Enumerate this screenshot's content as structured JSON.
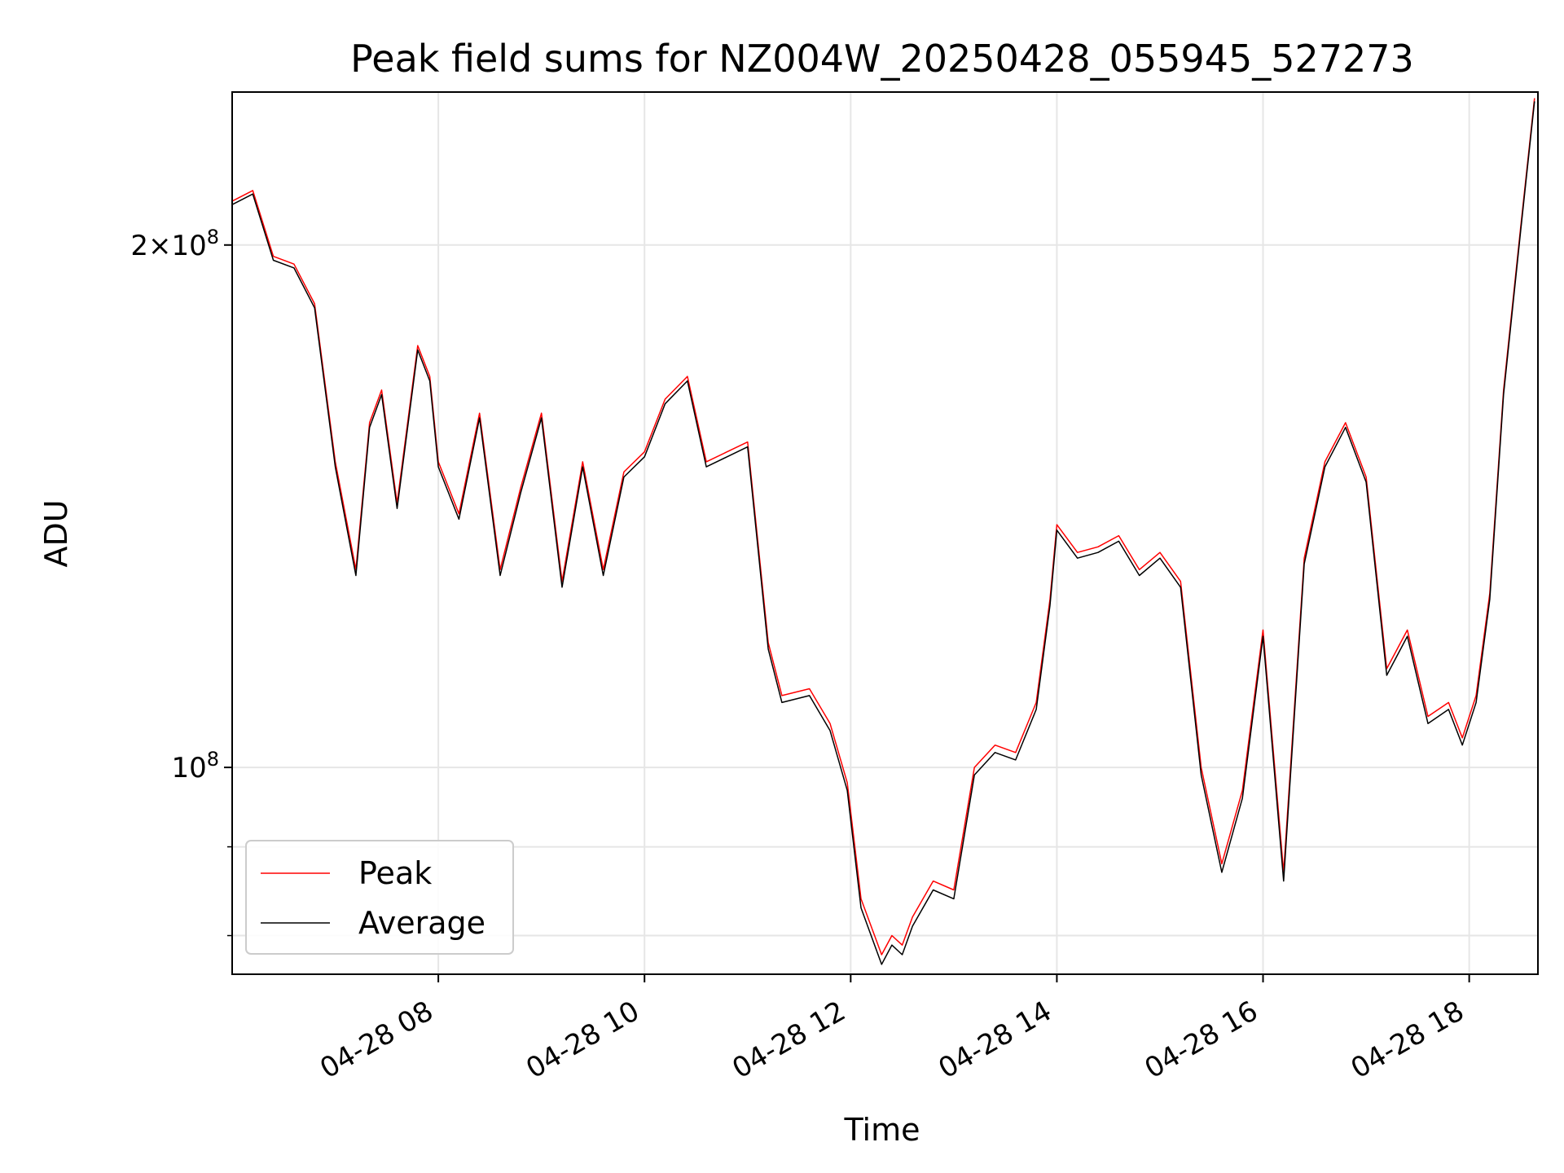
{
  "chart_data": {
    "type": "line",
    "title": "Peak field sums for NZ004W_20250428_055945_527273",
    "xlabel": "Time",
    "ylabel": "ADU",
    "y_scale": "log",
    "grid": true,
    "legend_position": "lower-left",
    "x_range": [
      "2025-04-28T06:00",
      "2025-04-28T18:40"
    ],
    "ylim": [
      76000000,
      245000000
    ],
    "x_ticks": [
      {
        "t": "2025-04-28T08:00",
        "label": "04-28 08"
      },
      {
        "t": "2025-04-28T10:00",
        "label": "04-28 10"
      },
      {
        "t": "2025-04-28T12:00",
        "label": "04-28 12"
      },
      {
        "t": "2025-04-28T14:00",
        "label": "04-28 14"
      },
      {
        "t": "2025-04-28T16:00",
        "label": "04-28 16"
      },
      {
        "t": "2025-04-28T18:00",
        "label": "04-28 18"
      }
    ],
    "y_major_ticks": [
      {
        "value": 100000000,
        "mantissa": "",
        "exp": "8"
      },
      {
        "value": 200000000,
        "mantissa": "2",
        "exp": "8"
      }
    ],
    "y_minor_ticks": [
      80000000,
      90000000
    ],
    "series": [
      {
        "name": "Peak",
        "color": "#ff0000",
        "x": [
          "2025-04-28T06:00",
          "2025-04-28T06:12",
          "2025-04-28T06:24",
          "2025-04-28T06:36",
          "2025-04-28T06:48",
          "2025-04-28T07:00",
          "2025-04-28T07:12",
          "2025-04-28T07:20",
          "2025-04-28T07:27",
          "2025-04-28T07:36",
          "2025-04-28T07:48",
          "2025-04-28T07:55",
          "2025-04-28T08:00",
          "2025-04-28T08:12",
          "2025-04-28T08:24",
          "2025-04-28T08:36",
          "2025-04-28T08:48",
          "2025-04-28T09:00",
          "2025-04-28T09:12",
          "2025-04-28T09:24",
          "2025-04-28T09:36",
          "2025-04-28T09:48",
          "2025-04-28T10:00",
          "2025-04-28T10:12",
          "2025-04-28T10:25",
          "2025-04-28T10:36",
          "2025-04-28T10:48",
          "2025-04-28T11:00",
          "2025-04-28T11:12",
          "2025-04-28T11:20",
          "2025-04-28T11:36",
          "2025-04-28T11:48",
          "2025-04-28T11:58",
          "2025-04-28T12:06",
          "2025-04-28T12:18",
          "2025-04-28T12:24",
          "2025-04-28T12:30",
          "2025-04-28T12:36",
          "2025-04-28T12:48",
          "2025-04-28T13:00",
          "2025-04-28T13:12",
          "2025-04-28T13:24",
          "2025-04-28T13:36",
          "2025-04-28T13:48",
          "2025-04-28T13:56",
          "2025-04-28T14:00",
          "2025-04-28T14:12",
          "2025-04-28T14:24",
          "2025-04-28T14:36",
          "2025-04-28T14:48",
          "2025-04-28T15:00",
          "2025-04-28T15:12",
          "2025-04-28T15:24",
          "2025-04-28T15:36",
          "2025-04-28T15:48",
          "2025-04-28T16:00",
          "2025-04-28T16:12",
          "2025-04-28T16:24",
          "2025-04-28T16:36",
          "2025-04-28T16:48",
          "2025-04-28T17:00",
          "2025-04-28T17:12",
          "2025-04-28T17:24",
          "2025-04-28T17:36",
          "2025-04-28T17:48",
          "2025-04-28T17:56",
          "2025-04-28T18:04",
          "2025-04-28T18:12",
          "2025-04-28T18:20",
          "2025-04-28T18:30",
          "2025-04-28T18:38"
        ],
        "y": [
          212000000,
          215000000,
          197000000,
          195000000,
          185000000,
          150000000,
          130000000,
          158000000,
          165000000,
          142000000,
          175000000,
          168000000,
          150000000,
          140000000,
          160000000,
          130000000,
          145000000,
          160000000,
          128000000,
          150000000,
          130000000,
          148000000,
          152000000,
          163000000,
          168000000,
          150000000,
          152000000,
          154000000,
          118000000,
          110000000,
          111000000,
          106000000,
          98000000,
          84000000,
          78000000,
          80000000,
          79000000,
          82000000,
          86000000,
          85000000,
          100000000,
          103000000,
          102000000,
          109000000,
          125000000,
          138000000,
          133000000,
          134000000,
          136000000,
          130000000,
          133000000,
          128000000,
          100000000,
          88000000,
          97000000,
          120000000,
          87000000,
          132000000,
          150000000,
          158000000,
          147000000,
          114000000,
          120000000,
          107000000,
          109000000,
          104000000,
          110000000,
          126000000,
          165000000,
          205000000,
          243000000
        ]
      },
      {
        "name": "Average",
        "color": "#000000",
        "x": [
          "2025-04-28T06:00",
          "2025-04-28T06:12",
          "2025-04-28T06:24",
          "2025-04-28T06:36",
          "2025-04-28T06:48",
          "2025-04-28T07:00",
          "2025-04-28T07:12",
          "2025-04-28T07:20",
          "2025-04-28T07:27",
          "2025-04-28T07:36",
          "2025-04-28T07:48",
          "2025-04-28T07:55",
          "2025-04-28T08:00",
          "2025-04-28T08:12",
          "2025-04-28T08:24",
          "2025-04-28T08:36",
          "2025-04-28T08:48",
          "2025-04-28T09:00",
          "2025-04-28T09:12",
          "2025-04-28T09:24",
          "2025-04-28T09:36",
          "2025-04-28T09:48",
          "2025-04-28T10:00",
          "2025-04-28T10:12",
          "2025-04-28T10:25",
          "2025-04-28T10:36",
          "2025-04-28T10:48",
          "2025-04-28T11:00",
          "2025-04-28T11:12",
          "2025-04-28T11:20",
          "2025-04-28T11:36",
          "2025-04-28T11:48",
          "2025-04-28T11:58",
          "2025-04-28T12:06",
          "2025-04-28T12:18",
          "2025-04-28T12:24",
          "2025-04-28T12:30",
          "2025-04-28T12:36",
          "2025-04-28T12:48",
          "2025-04-28T13:00",
          "2025-04-28T13:12",
          "2025-04-28T13:24",
          "2025-04-28T13:36",
          "2025-04-28T13:48",
          "2025-04-28T13:56",
          "2025-04-28T14:00",
          "2025-04-28T14:12",
          "2025-04-28T14:24",
          "2025-04-28T14:36",
          "2025-04-28T14:48",
          "2025-04-28T15:00",
          "2025-04-28T15:12",
          "2025-04-28T15:24",
          "2025-04-28T15:36",
          "2025-04-28T15:48",
          "2025-04-28T16:00",
          "2025-04-28T16:12",
          "2025-04-28T16:24",
          "2025-04-28T16:36",
          "2025-04-28T16:48",
          "2025-04-28T17:00",
          "2025-04-28T17:12",
          "2025-04-28T17:24",
          "2025-04-28T17:36",
          "2025-04-28T17:48",
          "2025-04-28T17:56",
          "2025-04-28T18:04",
          "2025-04-28T18:12",
          "2025-04-28T18:20",
          "2025-04-28T18:30",
          "2025-04-28T18:38"
        ],
        "y": [
          211000000,
          214000000,
          196000000,
          194000000,
          184000000,
          149000000,
          129000000,
          157000000,
          164000000,
          141000000,
          174000000,
          167000000,
          149000000,
          139000000,
          159000000,
          129000000,
          144000000,
          159000000,
          127000000,
          149000000,
          129000000,
          147000000,
          151000000,
          162000000,
          167000000,
          149000000,
          151000000,
          153000000,
          117000000,
          109000000,
          110000000,
          105000000,
          97000000,
          83000000,
          77000000,
          79000000,
          78000000,
          81000000,
          85000000,
          84000000,
          99000000,
          102000000,
          101000000,
          108000000,
          124000000,
          137000000,
          132000000,
          133000000,
          135000000,
          129000000,
          132000000,
          127000000,
          99000000,
          87000000,
          96000000,
          119000000,
          86000000,
          131000000,
          149000000,
          157000000,
          146000000,
          113000000,
          119000000,
          106000000,
          108000000,
          103000000,
          109000000,
          125000000,
          164000000,
          204000000,
          242000000
        ]
      }
    ]
  }
}
